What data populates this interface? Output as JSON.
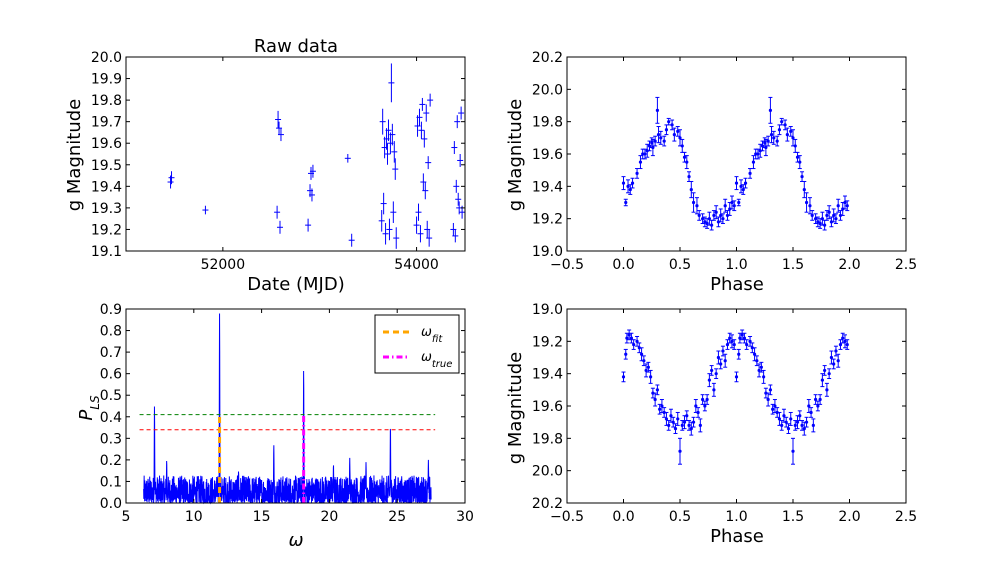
{
  "colors": {
    "data": "#0000ff",
    "fit": "#ffa500",
    "true": "#ff00ff",
    "sig_high": "#008000",
    "sig_low": "#ff0000",
    "frame": "#000000"
  },
  "chart_data": [
    {
      "type": "scatter",
      "title": "Raw data",
      "xlabel": "Date (MJD)",
      "ylabel": "g Magnitude",
      "xlim": [
        51000,
        54500
      ],
      "ylim": [
        19.1,
        20.0
      ],
      "y_inverted": false,
      "xticks": [
        52000,
        54000
      ],
      "xtick_labels": [
        "52000",
        "54000"
      ],
      "yticks": [
        19.1,
        19.2,
        19.3,
        19.4,
        19.5,
        19.6,
        19.7,
        19.8,
        19.9,
        20.0
      ],
      "ytick_labels": [
        "19.1",
        "19.2",
        "19.3",
        "19.4",
        "19.5",
        "19.6",
        "19.7",
        "19.8",
        "19.9",
        "20.0"
      ],
      "grid": false,
      "marker": "+ with vertical error bars",
      "x": [
        51460,
        51470,
        51820,
        52560,
        52570,
        52580,
        52590,
        52600,
        52880,
        52900,
        52910,
        52920,
        52930,
        53290,
        53330,
        53640,
        53650,
        53660,
        53670,
        53680,
        53690,
        53700,
        53710,
        53720,
        53730,
        53740,
        53750,
        53760,
        53770,
        53780,
        53790,
        54000,
        54010,
        54020,
        54030,
        54040,
        54050,
        54060,
        54070,
        54080,
        54090,
        54100,
        54110,
        54120,
        54130,
        54140,
        54380,
        54390,
        54400,
        54410,
        54420,
        54430,
        54440,
        54450,
        54460,
        54470
      ],
      "y": [
        19.42,
        19.44,
        19.29,
        19.28,
        19.71,
        19.67,
        19.21,
        19.64,
        19.22,
        19.38,
        19.46,
        19.36,
        19.47,
        19.53,
        19.15,
        19.24,
        19.7,
        19.32,
        19.58,
        19.18,
        19.62,
        19.55,
        19.66,
        19.2,
        19.6,
        19.88,
        19.64,
        19.28,
        19.56,
        19.48,
        19.16,
        19.22,
        19.68,
        19.28,
        19.72,
        19.18,
        19.66,
        19.78,
        19.42,
        19.62,
        19.38,
        19.74,
        19.2,
        19.51,
        19.16,
        19.8,
        19.2,
        19.58,
        19.17,
        19.4,
        19.7,
        19.34,
        19.3,
        19.52,
        19.74,
        19.28
      ],
      "yerr": [
        0.03,
        0.03,
        0.02,
        0.03,
        0.04,
        0.03,
        0.03,
        0.03,
        0.03,
        0.03,
        0.03,
        0.03,
        0.03,
        0.02,
        0.03,
        0.05,
        0.06,
        0.05,
        0.05,
        0.05,
        0.05,
        0.05,
        0.05,
        0.05,
        0.05,
        0.09,
        0.05,
        0.05,
        0.05,
        0.05,
        0.05,
        0.04,
        0.05,
        0.04,
        0.04,
        0.04,
        0.04,
        0.03,
        0.04,
        0.04,
        0.04,
        0.04,
        0.04,
        0.03,
        0.04,
        0.03,
        0.03,
        0.03,
        0.03,
        0.03,
        0.03,
        0.03,
        0.03,
        0.03,
        0.03,
        0.03
      ]
    },
    {
      "type": "scatter",
      "title": "",
      "xlabel": "Phase",
      "ylabel": "g Magnitude",
      "xlim": [
        -0.5,
        2.5
      ],
      "ylim": [
        19.0,
        20.2
      ],
      "y_inverted": false,
      "xticks": [
        -0.5,
        0.0,
        0.5,
        1.0,
        1.5,
        2.0,
        2.5
      ],
      "xtick_labels": [
        "−0.5",
        "0.0",
        "0.5",
        "1.0",
        "1.5",
        "2.0",
        "2.5"
      ],
      "yticks": [
        19.0,
        19.2,
        19.4,
        19.6,
        19.8,
        20.0,
        20.2
      ],
      "ytick_labels": [
        "19.0",
        "19.2",
        "19.4",
        "19.6",
        "19.8",
        "20.0",
        "20.2"
      ],
      "grid": false,
      "marker": "dot with vertical error bars",
      "phase": [
        0.0,
        0.02,
        0.04,
        0.06,
        0.08,
        0.12,
        0.15,
        0.17,
        0.19,
        0.21,
        0.23,
        0.25,
        0.26,
        0.28,
        0.3,
        0.31,
        0.33,
        0.36,
        0.38,
        0.4,
        0.43,
        0.45,
        0.48,
        0.5,
        0.52,
        0.54,
        0.56,
        0.58,
        0.6,
        0.62,
        0.65,
        0.67,
        0.7,
        0.72,
        0.74,
        0.76,
        0.78,
        0.8,
        0.82,
        0.84,
        0.86,
        0.88,
        0.9,
        0.92,
        0.94,
        0.96,
        0.98
      ],
      "y": [
        19.42,
        19.3,
        19.4,
        19.38,
        19.42,
        19.48,
        19.55,
        19.6,
        19.6,
        19.62,
        19.65,
        19.67,
        19.64,
        19.68,
        19.87,
        19.72,
        19.7,
        19.68,
        19.75,
        19.8,
        19.78,
        19.72,
        19.74,
        19.7,
        19.65,
        19.58,
        19.55,
        19.46,
        19.38,
        19.3,
        19.28,
        19.22,
        19.2,
        19.18,
        19.17,
        19.2,
        19.16,
        19.22,
        19.24,
        19.18,
        19.22,
        19.2,
        19.28,
        19.22,
        19.26,
        19.3,
        19.28
      ],
      "yerr": [
        0.04,
        0.02,
        0.04,
        0.03,
        0.03,
        0.03,
        0.04,
        0.03,
        0.03,
        0.04,
        0.03,
        0.03,
        0.05,
        0.03,
        0.08,
        0.05,
        0.04,
        0.03,
        0.03,
        0.02,
        0.03,
        0.04,
        0.03,
        0.05,
        0.04,
        0.03,
        0.04,
        0.03,
        0.05,
        0.06,
        0.05,
        0.03,
        0.03,
        0.03,
        0.03,
        0.04,
        0.03,
        0.03,
        0.04,
        0.03,
        0.04,
        0.03,
        0.04,
        0.03,
        0.04,
        0.04,
        0.03
      ]
    },
    {
      "type": "line",
      "title": "",
      "xlabel": "ω",
      "ylabel": "P_LS",
      "xlim": [
        5,
        30
      ],
      "ylim": [
        0.0,
        0.9
      ],
      "xticks": [
        5,
        10,
        15,
        20,
        25,
        30
      ],
      "xtick_labels": [
        "5",
        "10",
        "15",
        "20",
        "25",
        "30"
      ],
      "yticks": [
        0.0,
        0.1,
        0.2,
        0.3,
        0.4,
        0.5,
        0.6,
        0.7,
        0.8,
        0.9
      ],
      "ytick_labels": [
        "0.0",
        "0.1",
        "0.2",
        "0.3",
        "0.4",
        "0.5",
        "0.6",
        "0.7",
        "0.8",
        "0.9"
      ],
      "grid": false,
      "omega_range": [
        6.3,
        27.5
      ],
      "peaks": [
        {
          "omega": 7.1,
          "power": 0.45
        },
        {
          "omega": 11.9,
          "power": 0.88
        },
        {
          "omega": 18.1,
          "power": 0.62
        },
        {
          "omega": 24.5,
          "power": 0.36
        },
        {
          "omega": 8.0,
          "power": 0.2
        },
        {
          "omega": 13.3,
          "power": 0.15
        },
        {
          "omega": 15.9,
          "power": 0.27
        },
        {
          "omega": 20.3,
          "power": 0.18
        },
        {
          "omega": 21.5,
          "power": 0.21
        },
        {
          "omega": 22.7,
          "power": 0.19
        },
        {
          "omega": 27.3,
          "power": 0.2
        }
      ],
      "noise_level": 0.08,
      "hlines": [
        {
          "y": 0.41,
          "color": "#008000",
          "style": "dashed"
        },
        {
          "y": 0.34,
          "color": "#ff0000",
          "style": "dashed"
        }
      ],
      "vlines": [
        {
          "x": 11.9,
          "name": "ωfit",
          "color": "#ffa500",
          "style": "dashed",
          "ymax": 0.41
        },
        {
          "x": 18.1,
          "name": "ωtrue",
          "color": "#ff00ff",
          "style": "dashdot",
          "ymax": 0.41
        }
      ],
      "legend": {
        "placement": "top-right",
        "entries": [
          {
            "base": "ω",
            "sub": "fit",
            "color": "#ffa500",
            "style": "dashed"
          },
          {
            "base": "ω",
            "sub": "true",
            "color": "#ff00ff",
            "style": "dashdot"
          }
        ]
      },
      "ylabel_base": "P",
      "ylabel_sub": "LS"
    },
    {
      "type": "scatter",
      "title": "",
      "xlabel": "Phase",
      "ylabel": "g Magnitude",
      "xlim": [
        -0.5,
        2.5
      ],
      "ylim": [
        19.0,
        20.2
      ],
      "y_inverted": true,
      "xticks": [
        -0.5,
        0.0,
        0.5,
        1.0,
        1.5,
        2.0,
        2.5
      ],
      "xtick_labels": [
        "−0.5",
        "0.0",
        "0.5",
        "1.0",
        "1.5",
        "2.0",
        "2.5"
      ],
      "yticks": [
        19.0,
        19.2,
        19.4,
        19.6,
        19.8,
        20.0,
        20.2
      ],
      "ytick_labels": [
        "19.0",
        "19.2",
        "19.4",
        "19.6",
        "19.8",
        "20.0",
        "20.2"
      ],
      "grid": false,
      "marker": "dot with vertical error bars",
      "phase": [
        0.0,
        0.02,
        0.03,
        0.05,
        0.07,
        0.09,
        0.12,
        0.14,
        0.16,
        0.18,
        0.2,
        0.22,
        0.24,
        0.26,
        0.28,
        0.3,
        0.32,
        0.34,
        0.36,
        0.38,
        0.4,
        0.42,
        0.44,
        0.46,
        0.48,
        0.5,
        0.52,
        0.54,
        0.56,
        0.58,
        0.6,
        0.62,
        0.64,
        0.66,
        0.68,
        0.7,
        0.72,
        0.74,
        0.76,
        0.78,
        0.8,
        0.82,
        0.84,
        0.86,
        0.88,
        0.9,
        0.92,
        0.94,
        0.96,
        0.98
      ],
      "y": [
        19.42,
        19.28,
        19.18,
        19.16,
        19.18,
        19.22,
        19.2,
        19.24,
        19.28,
        19.32,
        19.38,
        19.36,
        19.42,
        19.52,
        19.56,
        19.5,
        19.62,
        19.6,
        19.64,
        19.68,
        19.72,
        19.66,
        19.7,
        19.74,
        19.68,
        19.88,
        19.72,
        19.7,
        19.66,
        19.72,
        19.74,
        19.7,
        19.6,
        19.64,
        19.72,
        19.56,
        19.6,
        19.56,
        19.44,
        19.38,
        19.5,
        19.4,
        19.3,
        19.34,
        19.26,
        19.32,
        19.22,
        19.18,
        19.2,
        19.22
      ],
      "yerr": [
        0.03,
        0.03,
        0.03,
        0.03,
        0.03,
        0.03,
        0.03,
        0.03,
        0.04,
        0.03,
        0.04,
        0.03,
        0.04,
        0.03,
        0.04,
        0.03,
        0.03,
        0.04,
        0.03,
        0.04,
        0.03,
        0.04,
        0.03,
        0.03,
        0.04,
        0.08,
        0.03,
        0.04,
        0.03,
        0.03,
        0.04,
        0.03,
        0.04,
        0.03,
        0.04,
        0.03,
        0.03,
        0.03,
        0.04,
        0.03,
        0.04,
        0.03,
        0.04,
        0.03,
        0.03,
        0.04,
        0.03,
        0.03,
        0.04,
        0.03
      ]
    }
  ]
}
